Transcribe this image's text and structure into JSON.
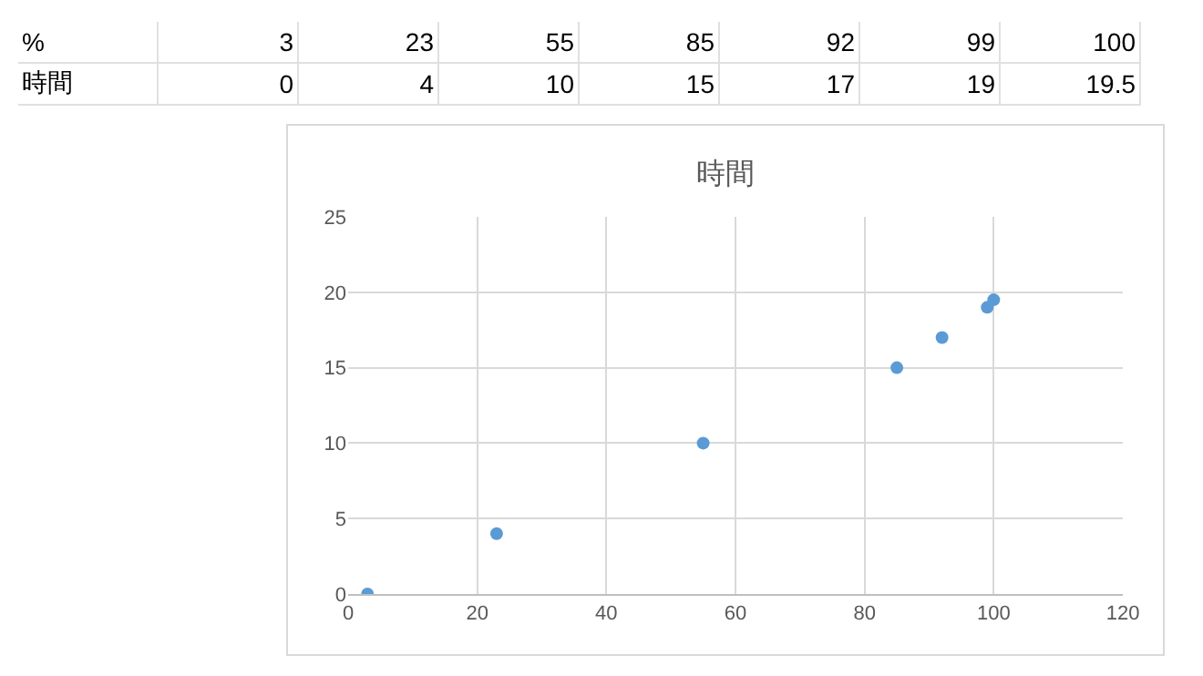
{
  "chart_data": {
    "type": "scatter",
    "title": "時間",
    "annotations": [
      "%",
      "3",
      "23",
      "55",
      "85",
      "92",
      "99",
      "100",
      "時間",
      "0",
      "4",
      "10",
      "15",
      "17",
      "19",
      "19.5"
    ],
    "x": [
      3,
      23,
      55,
      85,
      92,
      99,
      100
    ],
    "values": [
      0,
      4,
      10,
      15,
      17,
      19,
      19.5
    ],
    "color": "#5b9bd5",
    "marker": "circle",
    "xlim": [
      0,
      120
    ],
    "xticks": [
      0,
      20,
      40,
      60,
      80,
      100,
      120
    ],
    "ylim": [
      0,
      25
    ],
    "yticks": [
      0,
      5,
      10,
      15,
      20,
      25
    ],
    "grid": true
  }
}
